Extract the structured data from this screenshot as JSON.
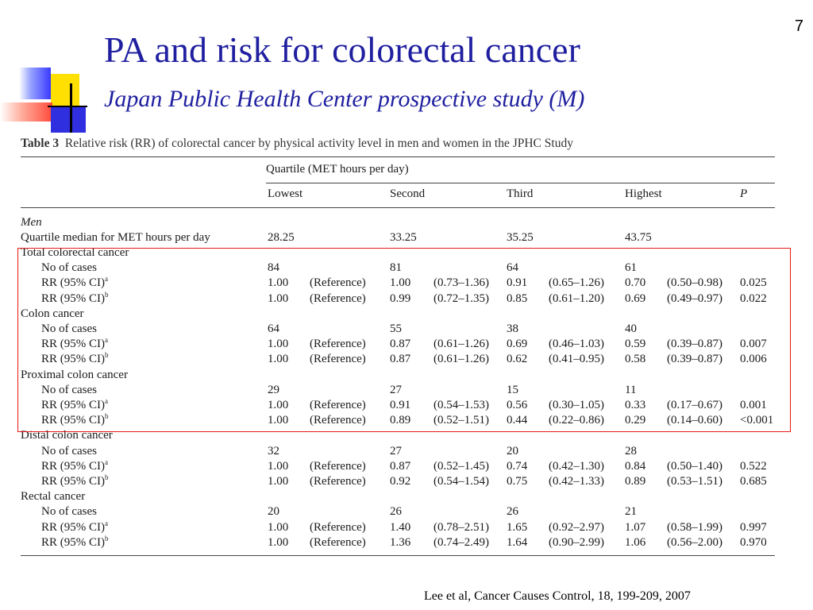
{
  "page_number": "7",
  "title": "PA and risk for colorectal cancer",
  "subtitle": "Japan Public Health Center prospective study (M)",
  "table": {
    "caption_label": "Table 3",
    "caption_text": "Relative risk (RR) of colorectal cancer by physical activity level in men and women in the JPHC Study",
    "quartile_header": "Quartile (MET hours per day)",
    "columns": [
      "Lowest",
      "Second",
      "Third",
      "Highest",
      "P"
    ],
    "section_label": "Men",
    "median_row": {
      "label": "Quartile median for MET hours per day",
      "values": [
        "28.25",
        "33.25",
        "35.25",
        "43.75"
      ]
    },
    "groups": [
      {
        "name": "Total colorectal cancer",
        "cases": {
          "label": "No of cases",
          "values": [
            "84",
            "81",
            "64",
            "61"
          ]
        },
        "rr_a": {
          "label": "RR (95% CI)",
          "sup": "a",
          "values": [
            "1.00",
            "(Reference)",
            "1.00",
            "(0.73–1.36)",
            "0.91",
            "(0.65–1.26)",
            "0.70",
            "(0.50–0.98)",
            "0.025"
          ]
        },
        "rr_b": {
          "label": "RR (95% CI)",
          "sup": "b",
          "values": [
            "1.00",
            "(Reference)",
            "0.99",
            "(0.72–1.35)",
            "0.85",
            "(0.61–1.20)",
            "0.69",
            "(0.49–0.97)",
            "0.022"
          ]
        }
      },
      {
        "name": "Colon cancer",
        "cases": {
          "label": "No of cases",
          "values": [
            "64",
            "55",
            "38",
            "40"
          ]
        },
        "rr_a": {
          "label": "RR (95% CI)",
          "sup": "a",
          "values": [
            "1.00",
            "(Reference)",
            "0.87",
            "(0.61–1.26)",
            "0.69",
            "(0.46–1.03)",
            "0.59",
            "(0.39–0.87)",
            "0.007"
          ]
        },
        "rr_b": {
          "label": "RR (95% CI)",
          "sup": "b",
          "values": [
            "1.00",
            "(Reference)",
            "0.87",
            "(0.61–1.26)",
            "0.62",
            "(0.41–0.95)",
            "0.58",
            "(0.39–0.87)",
            "0.006"
          ]
        }
      },
      {
        "name": "Proximal colon cancer",
        "cases": {
          "label": "No of cases",
          "values": [
            "29",
            "27",
            "15",
            "11"
          ]
        },
        "rr_a": {
          "label": "RR (95% CI)",
          "sup": "a",
          "values": [
            "1.00",
            "(Reference)",
            "0.91",
            "(0.54–1.53)",
            "0.56",
            "(0.30–1.05)",
            "0.33",
            "(0.17–0.67)",
            "0.001"
          ]
        },
        "rr_b": {
          "label": "RR (95% CI)",
          "sup": "b",
          "values": [
            "1.00",
            "(Reference)",
            "0.89",
            "(0.52–1.51)",
            "0.44",
            "(0.22–0.86)",
            "0.29",
            "(0.14–0.60)",
            "<0.001"
          ]
        }
      },
      {
        "name": "Distal colon cancer",
        "cases": {
          "label": "No of cases",
          "values": [
            "32",
            "27",
            "20",
            "28"
          ]
        },
        "rr_a": {
          "label": "RR (95% CI)",
          "sup": "a",
          "values": [
            "1.00",
            "(Reference)",
            "0.87",
            "(0.52–1.45)",
            "0.74",
            "(0.42–1.30)",
            "0.84",
            "(0.50–1.40)",
            "0.522"
          ]
        },
        "rr_b": {
          "label": "RR (95% CI)",
          "sup": "b",
          "values": [
            "1.00",
            "(Reference)",
            "0.92",
            "(0.54–1.54)",
            "0.75",
            "(0.42–1.33)",
            "0.89",
            "(0.53–1.51)",
            "0.685"
          ]
        }
      },
      {
        "name": "Rectal cancer",
        "cases": {
          "label": "No of cases",
          "values": [
            "20",
            "26",
            "26",
            "21"
          ]
        },
        "rr_a": {
          "label": "RR (95% CI)",
          "sup": "a",
          "values": [
            "1.00",
            "(Reference)",
            "1.40",
            "(0.78–2.51)",
            "1.65",
            "(0.92–2.97)",
            "1.07",
            "(0.58–1.99)",
            "0.997"
          ]
        },
        "rr_b": {
          "label": "RR (95% CI)",
          "sup": "b",
          "values": [
            "1.00",
            "(Reference)",
            "1.36",
            "(0.74–2.49)",
            "1.64",
            "(0.90–2.99)",
            "1.06",
            "(0.56–2.00)",
            "0.970"
          ]
        }
      }
    ]
  },
  "citation": "Lee et al, Cancer Causes Control, 18, 199-209, 2007",
  "colors": {
    "title": "#1f1fa0",
    "highlight_box": "#e81818"
  }
}
